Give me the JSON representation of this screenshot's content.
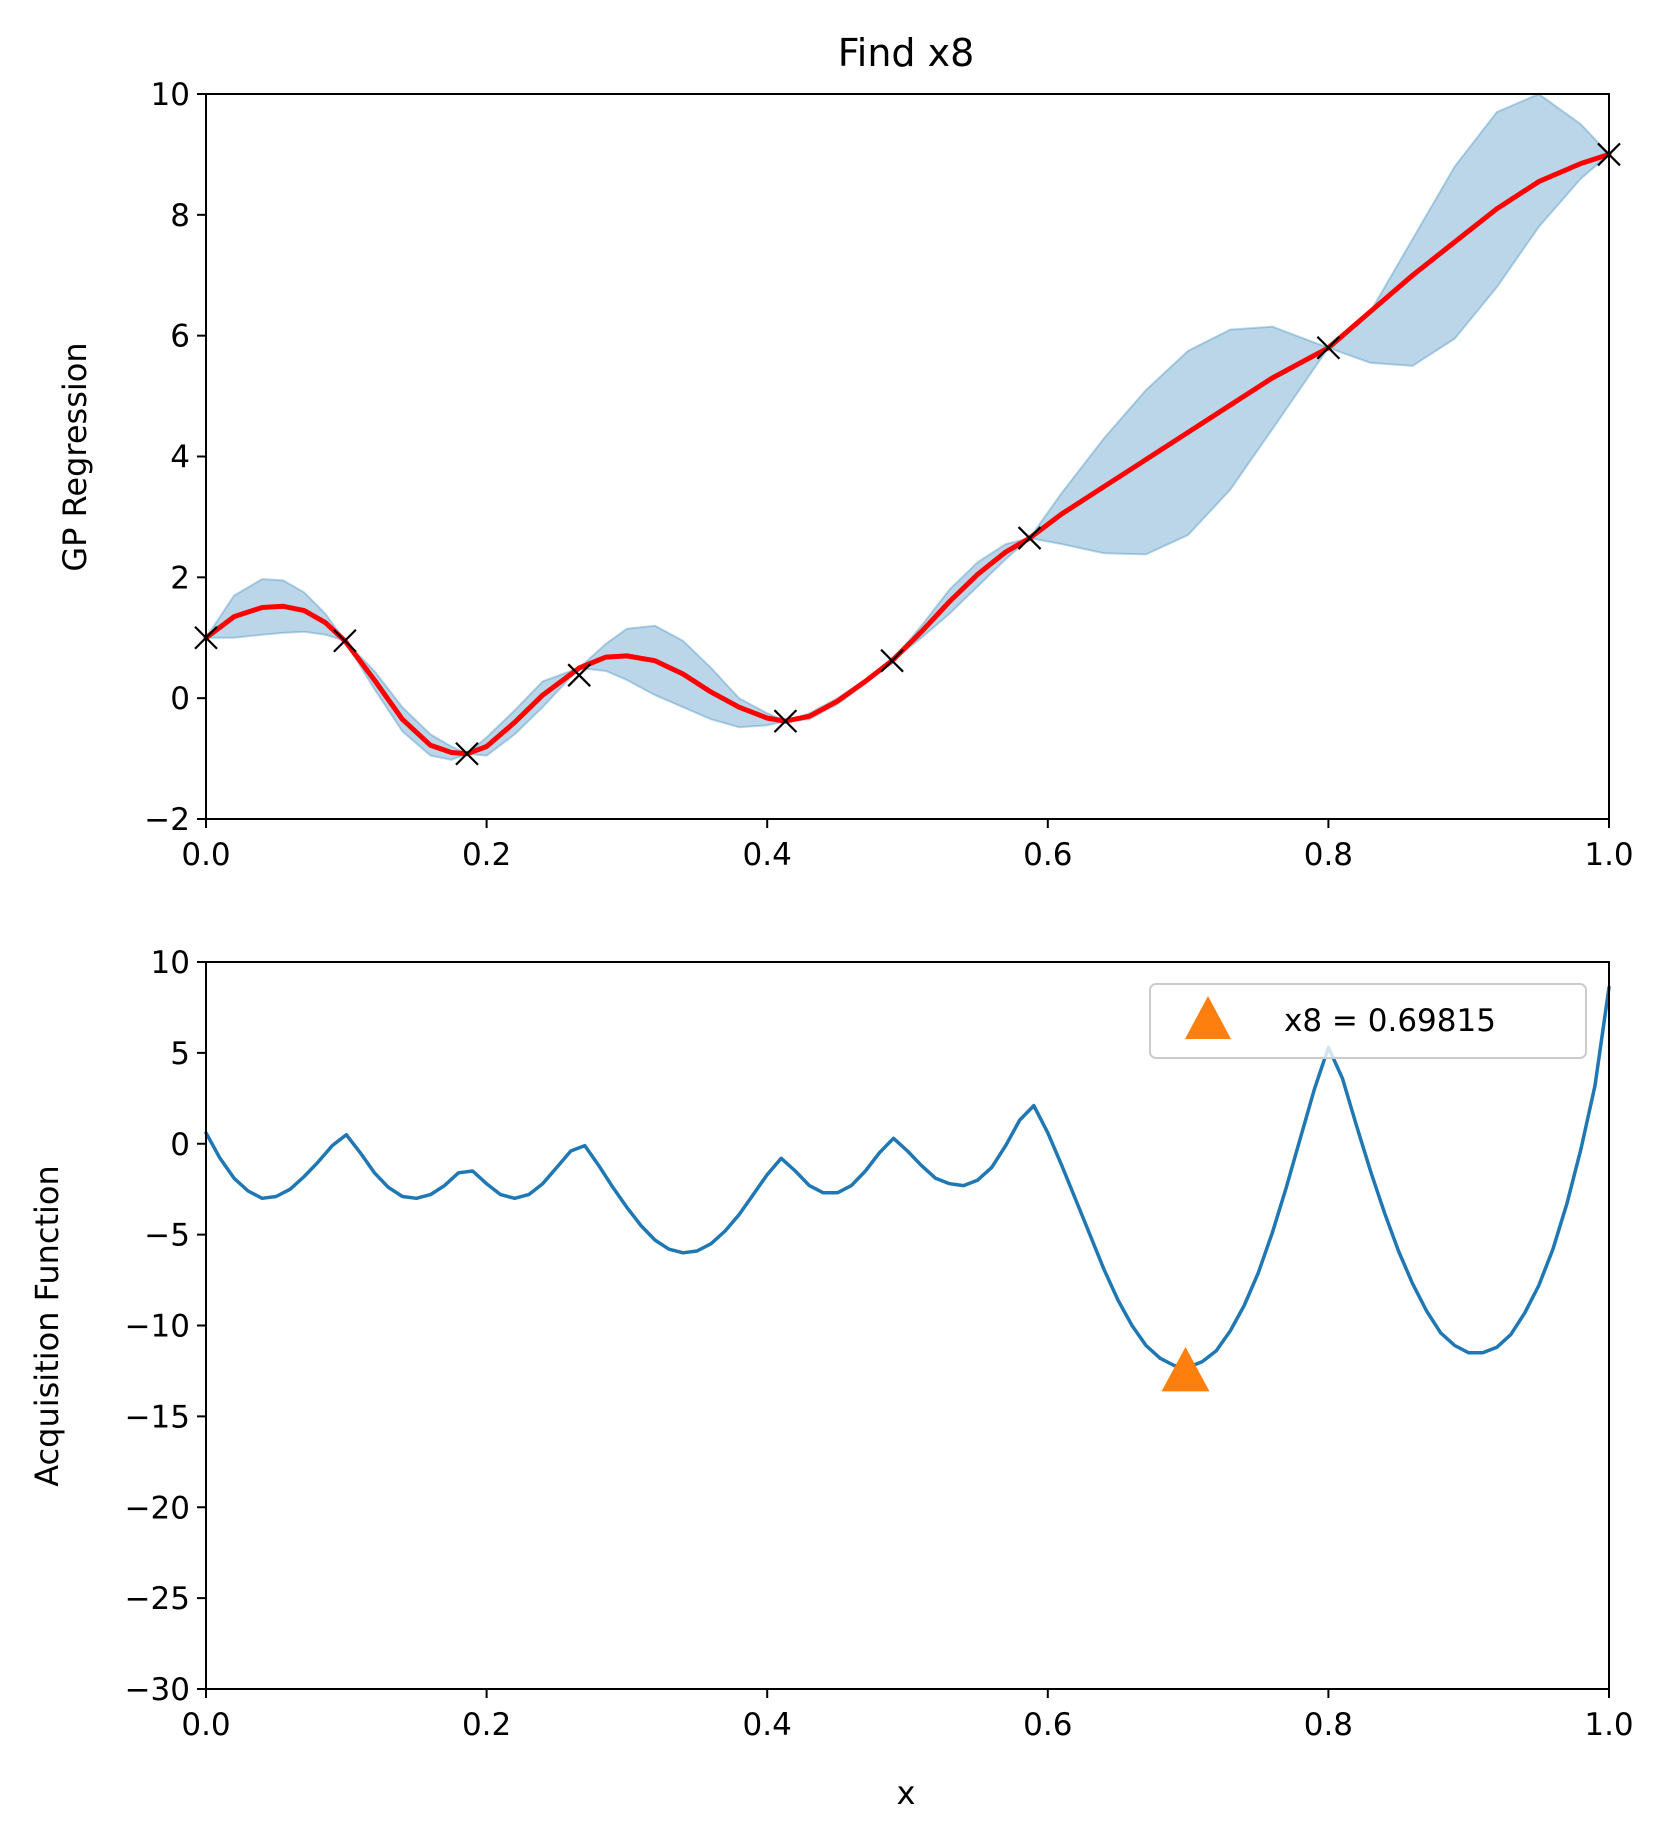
{
  "colors": {
    "mean": "#ff0000",
    "band_fill": "#1f77b4",
    "band_stroke": "#1f77b4",
    "acq_line": "#1f77b4",
    "marker": "#ff7f0e",
    "obs": "#000000",
    "axes": "#000000"
  },
  "chart_data": [
    {
      "type": "line",
      "title": "Find x8",
      "xlabel": "",
      "ylabel": "GP Regression",
      "xlim": [
        0.0,
        1.0
      ],
      "ylim": [
        -2,
        10
      ],
      "xticks": [
        0.0,
        0.2,
        0.4,
        0.6,
        0.8,
        1.0
      ],
      "xtick_labels": [
        "0.0",
        "0.2",
        "0.4",
        "0.6",
        "0.8",
        "1.0"
      ],
      "yticks": [
        -2,
        0,
        2,
        4,
        6,
        8,
        10
      ],
      "ytick_labels": [
        "−2",
        "0",
        "2",
        "4",
        "6",
        "8",
        "10"
      ],
      "grid": false,
      "observations": {
        "marker": "x",
        "x": [
          0.0,
          0.099,
          0.186,
          0.266,
          0.413,
          0.489,
          0.587,
          0.8,
          1.0
        ],
        "y": [
          1.0,
          0.95,
          -0.92,
          0.38,
          -0.38,
          0.62,
          2.65,
          5.8,
          9.0
        ]
      },
      "mean": {
        "x": [
          0.0,
          0.02,
          0.04,
          0.055,
          0.07,
          0.085,
          0.099,
          0.12,
          0.14,
          0.16,
          0.175,
          0.186,
          0.2,
          0.22,
          0.24,
          0.266,
          0.285,
          0.3,
          0.32,
          0.34,
          0.36,
          0.38,
          0.4,
          0.413,
          0.43,
          0.45,
          0.47,
          0.489,
          0.51,
          0.53,
          0.55,
          0.57,
          0.587,
          0.61,
          0.64,
          0.67,
          0.7,
          0.73,
          0.76,
          0.8,
          0.83,
          0.86,
          0.89,
          0.92,
          0.95,
          0.98,
          1.0
        ],
        "y": [
          1.0,
          1.35,
          1.5,
          1.52,
          1.45,
          1.25,
          0.95,
          0.3,
          -0.35,
          -0.78,
          -0.9,
          -0.92,
          -0.8,
          -0.4,
          0.05,
          0.5,
          0.68,
          0.7,
          0.62,
          0.4,
          0.1,
          -0.15,
          -0.33,
          -0.38,
          -0.3,
          -0.05,
          0.28,
          0.62,
          1.1,
          1.6,
          2.05,
          2.42,
          2.65,
          3.05,
          3.5,
          3.95,
          4.4,
          4.85,
          5.3,
          5.8,
          6.4,
          7.0,
          7.55,
          8.1,
          8.55,
          8.85,
          9.0
        ]
      },
      "band": {
        "x": [
          0.0,
          0.02,
          0.04,
          0.055,
          0.07,
          0.085,
          0.099,
          0.12,
          0.14,
          0.16,
          0.175,
          0.186,
          0.2,
          0.22,
          0.24,
          0.266,
          0.285,
          0.3,
          0.32,
          0.34,
          0.36,
          0.38,
          0.4,
          0.413,
          0.43,
          0.45,
          0.47,
          0.489,
          0.51,
          0.53,
          0.55,
          0.57,
          0.587,
          0.61,
          0.64,
          0.67,
          0.7,
          0.73,
          0.76,
          0.8,
          0.83,
          0.86,
          0.89,
          0.92,
          0.95,
          0.98,
          1.0
        ],
        "upper": [
          1.0,
          1.7,
          1.97,
          1.95,
          1.75,
          1.4,
          0.95,
          0.45,
          -0.15,
          -0.6,
          -0.8,
          -0.92,
          -0.65,
          -0.2,
          0.28,
          0.5,
          0.9,
          1.15,
          1.2,
          0.95,
          0.5,
          0.0,
          -0.25,
          -0.38,
          -0.25,
          0.0,
          0.3,
          0.62,
          1.2,
          1.8,
          2.25,
          2.55,
          2.65,
          3.4,
          4.3,
          5.1,
          5.75,
          6.1,
          6.15,
          5.8,
          6.4,
          7.6,
          8.8,
          9.7,
          10.0,
          9.5,
          9.0
        ],
        "lower": [
          1.0,
          1.0,
          1.05,
          1.08,
          1.1,
          1.05,
          0.95,
          0.15,
          -0.55,
          -0.95,
          -1.02,
          -0.92,
          -0.95,
          -0.6,
          -0.15,
          0.5,
          0.45,
          0.3,
          0.05,
          -0.15,
          -0.35,
          -0.48,
          -0.45,
          -0.38,
          -0.35,
          -0.1,
          0.25,
          0.62,
          1.0,
          1.4,
          1.85,
          2.3,
          2.65,
          2.55,
          2.4,
          2.38,
          2.7,
          3.45,
          4.45,
          5.8,
          5.55,
          5.5,
          5.95,
          6.8,
          7.8,
          8.6,
          9.0
        ]
      }
    },
    {
      "type": "line",
      "title": "",
      "xlabel": "x",
      "ylabel": "Acquisition Function",
      "xlim": [
        0.0,
        1.0
      ],
      "ylim": [
        -30,
        10
      ],
      "xticks": [
        0.0,
        0.2,
        0.4,
        0.6,
        0.8,
        1.0
      ],
      "xtick_labels": [
        "0.0",
        "0.2",
        "0.4",
        "0.6",
        "0.8",
        "1.0"
      ],
      "yticks": [
        -30,
        -25,
        -20,
        -15,
        -10,
        -5,
        0,
        5,
        10
      ],
      "ytick_labels": [
        "−30",
        "−25",
        "−20",
        "−15",
        "−10",
        "−5",
        "0",
        "5",
        "10"
      ],
      "grid": false,
      "legend_position": "top-right",
      "legend": [
        "x8 = 0.69815"
      ],
      "series": {
        "x": [
          0.0,
          0.01,
          0.02,
          0.03,
          0.04,
          0.05,
          0.06,
          0.07,
          0.08,
          0.09,
          0.1,
          0.11,
          0.12,
          0.13,
          0.14,
          0.15,
          0.16,
          0.17,
          0.18,
          0.19,
          0.2,
          0.21,
          0.22,
          0.23,
          0.24,
          0.25,
          0.26,
          0.27,
          0.28,
          0.29,
          0.3,
          0.31,
          0.32,
          0.33,
          0.34,
          0.35,
          0.36,
          0.37,
          0.38,
          0.39,
          0.4,
          0.41,
          0.42,
          0.43,
          0.44,
          0.45,
          0.46,
          0.47,
          0.48,
          0.49,
          0.5,
          0.51,
          0.52,
          0.53,
          0.54,
          0.55,
          0.56,
          0.57,
          0.58,
          0.59,
          0.6,
          0.61,
          0.62,
          0.63,
          0.64,
          0.65,
          0.66,
          0.67,
          0.68,
          0.69,
          0.7,
          0.71,
          0.72,
          0.73,
          0.74,
          0.75,
          0.76,
          0.77,
          0.78,
          0.79,
          0.8,
          0.81,
          0.82,
          0.83,
          0.84,
          0.85,
          0.86,
          0.87,
          0.88,
          0.89,
          0.9,
          0.91,
          0.92,
          0.93,
          0.94,
          0.95,
          0.96,
          0.97,
          0.98,
          0.99,
          1.0
        ],
        "y": [
          0.6,
          -0.8,
          -1.9,
          -2.6,
          -3.0,
          -2.9,
          -2.5,
          -1.8,
          -1.0,
          -0.1,
          0.5,
          -0.5,
          -1.6,
          -2.4,
          -2.9,
          -3.0,
          -2.8,
          -2.3,
          -1.6,
          -1.5,
          -2.2,
          -2.8,
          -3.0,
          -2.8,
          -2.2,
          -1.3,
          -0.4,
          -0.1,
          -1.2,
          -2.4,
          -3.5,
          -4.5,
          -5.3,
          -5.8,
          -6.0,
          -5.9,
          -5.5,
          -4.8,
          -3.9,
          -2.8,
          -1.7,
          -0.8,
          -1.5,
          -2.3,
          -2.7,
          -2.7,
          -2.3,
          -1.5,
          -0.5,
          0.3,
          -0.4,
          -1.2,
          -1.9,
          -2.2,
          -2.3,
          -2.0,
          -1.3,
          -0.1,
          1.3,
          2.1,
          0.6,
          -1.2,
          -3.1,
          -5.0,
          -6.9,
          -8.6,
          -10.0,
          -11.1,
          -11.8,
          -12.2,
          -12.3,
          -12.0,
          -11.4,
          -10.3,
          -8.9,
          -7.1,
          -4.9,
          -2.4,
          0.3,
          3.0,
          5.3,
          3.6,
          1.0,
          -1.5,
          -3.8,
          -5.9,
          -7.7,
          -9.2,
          -10.4,
          -11.1,
          -11.5,
          -11.5,
          -11.2,
          -10.5,
          -9.3,
          -7.8,
          -5.8,
          -3.3,
          -0.3,
          3.2,
          8.6
        ]
      },
      "selected": {
        "label": "x8 = 0.69815",
        "x": 0.69815,
        "y": -12.5
      }
    }
  ]
}
